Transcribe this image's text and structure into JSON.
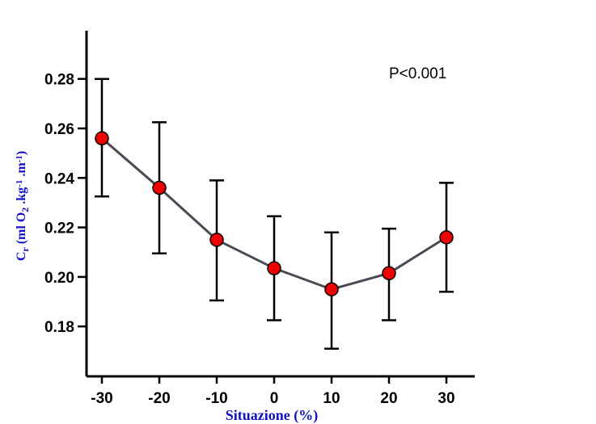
{
  "chart_data": {
    "type": "line",
    "title": "",
    "xlabel": "Situazione (%)",
    "ylabel": {
      "parts": [
        {
          "t": "C",
          "s": "n"
        },
        {
          "t": "r",
          "s": "sub"
        },
        {
          "t": " (ml O",
          "s": "n"
        },
        {
          "t": "2",
          "s": "sub"
        },
        {
          "t": " .kg",
          "s": "n"
        },
        {
          "t": "-1",
          "s": "sup"
        },
        {
          "t": " .m",
          "s": "n"
        },
        {
          "t": "-1",
          "s": "sup"
        },
        {
          "t": ")",
          "s": "n"
        }
      ]
    },
    "annotation": "P<0.001",
    "x": [
      -30,
      -20,
      -10,
      0,
      10,
      20,
      30
    ],
    "x_tick_labels": [
      "-30",
      "-20",
      "-10",
      "0",
      "10",
      "20",
      "30"
    ],
    "y_tick_values": [
      0.18,
      0.2,
      0.22,
      0.24,
      0.26,
      0.28
    ],
    "y_tick_labels": [
      "0.18",
      "0.20",
      "0.22",
      "0.24",
      "0.26",
      "0.28"
    ],
    "ylim": [
      0.16,
      0.3
    ],
    "grid": false,
    "series": [
      {
        "values": [
          0.256,
          0.236,
          0.215,
          0.2035,
          0.195,
          0.2015,
          0.216
        ],
        "error_upper": [
          0.28,
          0.2625,
          0.239,
          0.2245,
          0.218,
          0.2195,
          0.238
        ],
        "error_lower": [
          0.2325,
          0.2095,
          0.1905,
          0.1825,
          0.171,
          0.1825,
          0.194
        ],
        "line_color": "#4a4a55",
        "marker_color": "#ee0000"
      }
    ],
    "axis_label_color": "#1010c8"
  }
}
